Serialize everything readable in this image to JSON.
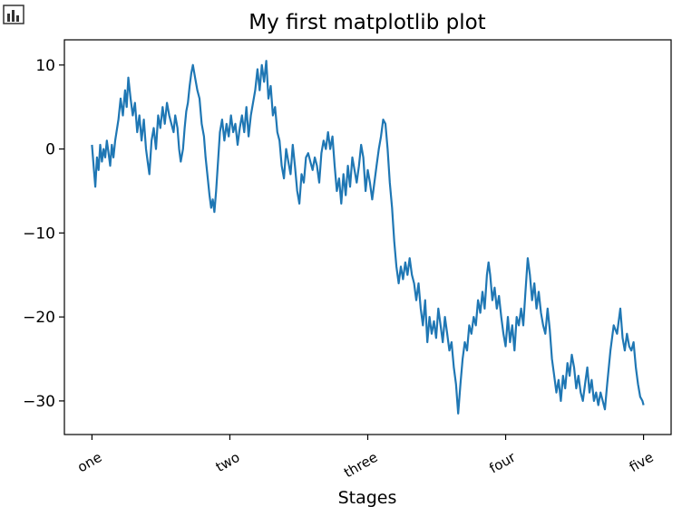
{
  "chart_data": {
    "type": "line",
    "title": "My first matplotlib plot",
    "xlabel": "Stages",
    "ylabel": "",
    "xlim": [
      -50,
      1050
    ],
    "ylim": [
      -34,
      13
    ],
    "grid": false,
    "x_ticks": [
      {
        "value": 0,
        "label": "one"
      },
      {
        "value": 250,
        "label": "two"
      },
      {
        "value": 500,
        "label": "three"
      },
      {
        "value": 750,
        "label": "four"
      },
      {
        "value": 1000,
        "label": "five"
      }
    ],
    "y_ticks": [
      {
        "value": 10,
        "label": "10"
      },
      {
        "value": 0,
        "label": "0"
      },
      {
        "value": -10,
        "label": "−10"
      },
      {
        "value": -20,
        "label": "−20"
      },
      {
        "value": -30,
        "label": "−30"
      }
    ],
    "series": [
      {
        "color": "#1f77b4",
        "points": [
          [
            0,
            0.5
          ],
          [
            3,
            -2
          ],
          [
            6,
            -4.5
          ],
          [
            9,
            -1
          ],
          [
            12,
            -2.5
          ],
          [
            15,
            0.5
          ],
          [
            18,
            -1.5
          ],
          [
            21,
            0
          ],
          [
            24,
            -1
          ],
          [
            27,
            1
          ],
          [
            30,
            -0.5
          ],
          [
            33,
            -2
          ],
          [
            36,
            0.5
          ],
          [
            39,
            -1
          ],
          [
            42,
            1
          ],
          [
            48,
            3.5
          ],
          [
            52,
            6
          ],
          [
            56,
            4
          ],
          [
            60,
            7
          ],
          [
            63,
            5
          ],
          [
            66,
            8.5
          ],
          [
            70,
            6
          ],
          [
            74,
            4
          ],
          [
            78,
            5.5
          ],
          [
            82,
            2
          ],
          [
            86,
            4
          ],
          [
            90,
            1
          ],
          [
            94,
            3.5
          ],
          [
            98,
            0
          ],
          [
            101,
            -1.5
          ],
          [
            104,
            -3
          ],
          [
            108,
            1
          ],
          [
            112,
            2.5
          ],
          [
            116,
            0
          ],
          [
            120,
            4
          ],
          [
            124,
            2.5
          ],
          [
            128,
            5
          ],
          [
            132,
            3
          ],
          [
            136,
            5.5
          ],
          [
            140,
            4
          ],
          [
            144,
            3
          ],
          [
            148,
            2
          ],
          [
            151,
            4
          ],
          [
            155,
            2.5
          ],
          [
            158,
            0
          ],
          [
            161,
            -1.5
          ],
          [
            165,
            0
          ],
          [
            168,
            2.5
          ],
          [
            171,
            4.5
          ],
          [
            174,
            5.5
          ],
          [
            177,
            7.5
          ],
          [
            180,
            9
          ],
          [
            183,
            10
          ],
          [
            187,
            8.5
          ],
          [
            191,
            7
          ],
          [
            195,
            6
          ],
          [
            199,
            3
          ],
          [
            203,
            1.5
          ],
          [
            206,
            -1
          ],
          [
            210,
            -3.5
          ],
          [
            213,
            -5.5
          ],
          [
            216,
            -7
          ],
          [
            219,
            -6
          ],
          [
            222,
            -7.5
          ],
          [
            225,
            -5
          ],
          [
            229,
            -1
          ],
          [
            232,
            2
          ],
          [
            236,
            3.5
          ],
          [
            240,
            1
          ],
          [
            244,
            3
          ],
          [
            248,
            1.5
          ],
          [
            252,
            4
          ],
          [
            256,
            2
          ],
          [
            260,
            3
          ],
          [
            264,
            0.5
          ],
          [
            268,
            2.5
          ],
          [
            272,
            4
          ],
          [
            276,
            2
          ],
          [
            280,
            5
          ],
          [
            284,
            1.5
          ],
          [
            288,
            4
          ],
          [
            292,
            5.5
          ],
          [
            296,
            7
          ],
          [
            300,
            9.5
          ],
          [
            304,
            7
          ],
          [
            308,
            10
          ],
          [
            312,
            8
          ],
          [
            316,
            10.5
          ],
          [
            320,
            6
          ],
          [
            324,
            7.5
          ],
          [
            328,
            4
          ],
          [
            332,
            5
          ],
          [
            336,
            2
          ],
          [
            340,
            1
          ],
          [
            344,
            -2
          ],
          [
            348,
            -3.5
          ],
          [
            352,
            0
          ],
          [
            356,
            -1.5
          ],
          [
            360,
            -3
          ],
          [
            364,
            0.5
          ],
          [
            368,
            -2
          ],
          [
            372,
            -5
          ],
          [
            376,
            -6.5
          ],
          [
            380,
            -3
          ],
          [
            384,
            -4
          ],
          [
            388,
            -1
          ],
          [
            392,
            -0.5
          ],
          [
            396,
            -1.5
          ],
          [
            400,
            -2.5
          ],
          [
            404,
            -1
          ],
          [
            408,
            -2
          ],
          [
            412,
            -4
          ],
          [
            416,
            -0.5
          ],
          [
            420,
            1
          ],
          [
            424,
            0
          ],
          [
            428,
            2
          ],
          [
            432,
            0
          ],
          [
            436,
            1.5
          ],
          [
            440,
            -2
          ],
          [
            444,
            -5
          ],
          [
            448,
            -3.5
          ],
          [
            452,
            -6.5
          ],
          [
            456,
            -3
          ],
          [
            460,
            -5.5
          ],
          [
            464,
            -2
          ],
          [
            468,
            -4.5
          ],
          [
            472,
            -1
          ],
          [
            476,
            -2.5
          ],
          [
            480,
            -4
          ],
          [
            484,
            -2
          ],
          [
            488,
            0.5
          ],
          [
            492,
            -1
          ],
          [
            496,
            -5
          ],
          [
            500,
            -2.5
          ],
          [
            504,
            -4
          ],
          [
            508,
            -6
          ],
          [
            512,
            -4
          ],
          [
            516,
            -2
          ],
          [
            520,
            0
          ],
          [
            524,
            1.5
          ],
          [
            528,
            3.5
          ],
          [
            532,
            3
          ],
          [
            536,
            0
          ],
          [
            540,
            -4
          ],
          [
            544,
            -7
          ],
          [
            548,
            -11
          ],
          [
            552,
            -14
          ],
          [
            556,
            -16
          ],
          [
            560,
            -14
          ],
          [
            564,
            -15.5
          ],
          [
            568,
            -13.5
          ],
          [
            572,
            -15
          ],
          [
            576,
            -13
          ],
          [
            580,
            -15
          ],
          [
            584,
            -16
          ],
          [
            588,
            -18
          ],
          [
            592,
            -16
          ],
          [
            596,
            -19
          ],
          [
            600,
            -21
          ],
          [
            604,
            -18
          ],
          [
            608,
            -23
          ],
          [
            612,
            -20
          ],
          [
            616,
            -22
          ],
          [
            620,
            -20.5
          ],
          [
            624,
            -22.5
          ],
          [
            628,
            -19
          ],
          [
            632,
            -21
          ],
          [
            636,
            -23
          ],
          [
            640,
            -20
          ],
          [
            644,
            -22
          ],
          [
            648,
            -24
          ],
          [
            652,
            -23
          ],
          [
            656,
            -26
          ],
          [
            660,
            -28
          ],
          [
            664,
            -31.5
          ],
          [
            668,
            -28
          ],
          [
            672,
            -25
          ],
          [
            676,
            -23
          ],
          [
            680,
            -24
          ],
          [
            684,
            -21
          ],
          [
            688,
            -22
          ],
          [
            692,
            -20
          ],
          [
            696,
            -21
          ],
          [
            700,
            -18
          ],
          [
            704,
            -19.5
          ],
          [
            708,
            -17
          ],
          [
            712,
            -19
          ],
          [
            716,
            -15
          ],
          [
            719,
            -13.5
          ],
          [
            722,
            -15
          ],
          [
            726,
            -18
          ],
          [
            730,
            -16.5
          ],
          [
            734,
            -19
          ],
          [
            738,
            -17.5
          ],
          [
            742,
            -20
          ],
          [
            746,
            -22
          ],
          [
            750,
            -23.5
          ],
          [
            754,
            -20
          ],
          [
            758,
            -23
          ],
          [
            762,
            -21
          ],
          [
            766,
            -24
          ],
          [
            770,
            -20
          ],
          [
            774,
            -21
          ],
          [
            778,
            -19
          ],
          [
            782,
            -21
          ],
          [
            786,
            -17
          ],
          [
            790,
            -13
          ],
          [
            794,
            -15
          ],
          [
            798,
            -18
          ],
          [
            802,
            -16
          ],
          [
            806,
            -19
          ],
          [
            810,
            -17
          ],
          [
            814,
            -19.5
          ],
          [
            818,
            -21
          ],
          [
            822,
            -22
          ],
          [
            826,
            -19
          ],
          [
            830,
            -21.5
          ],
          [
            834,
            -25
          ],
          [
            838,
            -27
          ],
          [
            842,
            -29
          ],
          [
            846,
            -27.5
          ],
          [
            850,
            -30
          ],
          [
            854,
            -27
          ],
          [
            858,
            -28.5
          ],
          [
            862,
            -25.5
          ],
          [
            866,
            -27
          ],
          [
            870,
            -24.5
          ],
          [
            874,
            -26
          ],
          [
            878,
            -28.5
          ],
          [
            882,
            -27
          ],
          [
            886,
            -29
          ],
          [
            890,
            -30
          ],
          [
            894,
            -28
          ],
          [
            898,
            -26
          ],
          [
            902,
            -29
          ],
          [
            906,
            -27.5
          ],
          [
            910,
            -30
          ],
          [
            914,
            -29
          ],
          [
            918,
            -30.5
          ],
          [
            922,
            -29
          ],
          [
            926,
            -30
          ],
          [
            930,
            -31
          ],
          [
            934,
            -28
          ],
          [
            940,
            -24
          ],
          [
            946,
            -21
          ],
          [
            952,
            -22
          ],
          [
            958,
            -19
          ],
          [
            962,
            -22.5
          ],
          [
            966,
            -24
          ],
          [
            970,
            -22
          ],
          [
            974,
            -23.5
          ],
          [
            978,
            -24
          ],
          [
            982,
            -23
          ],
          [
            986,
            -26
          ],
          [
            990,
            -28
          ],
          [
            994,
            -29.5
          ],
          [
            998,
            -30
          ],
          [
            1000,
            -30.5
          ]
        ]
      }
    ]
  }
}
